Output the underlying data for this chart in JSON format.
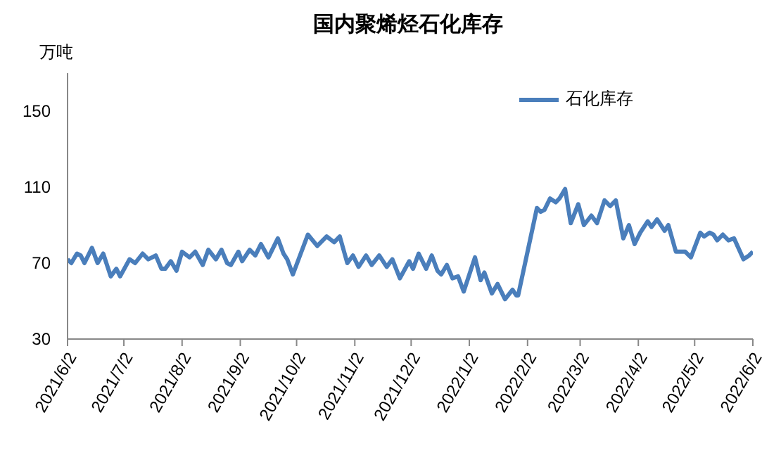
{
  "chart_data": {
    "type": "line",
    "title": "国内聚烯烃石化库存",
    "ylabel": "万吨",
    "legend": "top right",
    "marker": "none",
    "line_style": "solid",
    "grid": false,
    "ylim": [
      30,
      170
    ],
    "yticks": [
      30,
      70,
      110,
      150
    ],
    "xlim": [
      "2021-06-02",
      "2022-06-02"
    ],
    "xticks": [
      {
        "value": "2021-06-02",
        "label": "2021/6/2"
      },
      {
        "value": "2021-07-02",
        "label": "2021/7/2"
      },
      {
        "value": "2021-08-02",
        "label": "2021/8/2"
      },
      {
        "value": "2021-09-02",
        "label": "2021/9/2"
      },
      {
        "value": "2021-10-02",
        "label": "2021/10/2"
      },
      {
        "value": "2021-11-02",
        "label": "2021/11/2"
      },
      {
        "value": "2021-12-02",
        "label": "2021/12/2"
      },
      {
        "value": "2022-01-02",
        "label": "2022/1/2"
      },
      {
        "value": "2022-02-02",
        "label": "2022/2/2"
      },
      {
        "value": "2022-03-02",
        "label": "2022/3/2"
      },
      {
        "value": "2022-04-02",
        "label": "2022/4/2"
      },
      {
        "value": "2022-05-02",
        "label": "2022/5/2"
      },
      {
        "value": "2022-06-02",
        "label": "2022/6/2"
      }
    ],
    "x": [
      "2021-06-02",
      "2021-06-04",
      "2021-06-07",
      "2021-06-09",
      "2021-06-11",
      "2021-06-15",
      "2021-06-18",
      "2021-06-21",
      "2021-06-25",
      "2021-06-28",
      "2021-06-30",
      "2021-07-05",
      "2021-07-08",
      "2021-07-12",
      "2021-07-15",
      "2021-07-19",
      "2021-07-22",
      "2021-07-24",
      "2021-07-27",
      "2021-07-30",
      "2021-08-02",
      "2021-08-06",
      "2021-08-09",
      "2021-08-13",
      "2021-08-16",
      "2021-08-20",
      "2021-08-23",
      "2021-08-26",
      "2021-08-28",
      "2021-09-01",
      "2021-09-03",
      "2021-09-07",
      "2021-09-10",
      "2021-09-13",
      "2021-09-17",
      "2021-09-22",
      "2021-09-25",
      "2021-09-27",
      "2021-09-30",
      "2021-10-08",
      "2021-10-13",
      "2021-10-18",
      "2021-10-22",
      "2021-10-25",
      "2021-10-29",
      "2021-11-01",
      "2021-11-04",
      "2021-11-08",
      "2021-11-11",
      "2021-11-15",
      "2021-11-19",
      "2021-11-22",
      "2021-11-26",
      "2021-12-01",
      "2021-12-03",
      "2021-12-06",
      "2021-12-10",
      "2021-12-13",
      "2021-12-16",
      "2021-12-18",
      "2021-12-21",
      "2021-12-24",
      "2021-12-27",
      "2021-12-30",
      "2022-01-05",
      "2022-01-08",
      "2022-01-10",
      "2022-01-14",
      "2022-01-17",
      "2022-01-21",
      "2022-01-25",
      "2022-01-27",
      "2022-01-28",
      "2022-02-07",
      "2022-02-09",
      "2022-02-11",
      "2022-02-14",
      "2022-02-17",
      "2022-02-19",
      "2022-02-22",
      "2022-02-25",
      "2022-03-01",
      "2022-03-04",
      "2022-03-08",
      "2022-03-11",
      "2022-03-15",
      "2022-03-18",
      "2022-03-21",
      "2022-03-25",
      "2022-03-28",
      "2022-03-31",
      "2022-04-03",
      "2022-04-07",
      "2022-04-09",
      "2022-04-12",
      "2022-04-16",
      "2022-04-18",
      "2022-04-22",
      "2022-04-27",
      "2022-04-30",
      "2022-05-05",
      "2022-05-07",
      "2022-05-10",
      "2022-05-12",
      "2022-05-14",
      "2022-05-17",
      "2022-05-20",
      "2022-05-23",
      "2022-05-28",
      "2022-05-31",
      "2022-06-02"
    ],
    "series": [
      {
        "name": "石化库存",
        "color": "#4a7ebb",
        "values": [
          72,
          70,
          75,
          74,
          70,
          78,
          70,
          75,
          63,
          67,
          63,
          72,
          70,
          75,
          72,
          74,
          67,
          67,
          71,
          66,
          76,
          73,
          76,
          69,
          77,
          72,
          77,
          70,
          69,
          76,
          71,
          77,
          74,
          80,
          73,
          83,
          75,
          72,
          64,
          85,
          79,
          84,
          81,
          84,
          70,
          74,
          68,
          74,
          69,
          74,
          68,
          72,
          62,
          71,
          67,
          75,
          67,
          74,
          66,
          64,
          69,
          62,
          63,
          55,
          73,
          61,
          65,
          54,
          59,
          51,
          56,
          53,
          53,
          99,
          97,
          98,
          104,
          102,
          104,
          109,
          91,
          101,
          90,
          95,
          91,
          103,
          100,
          103,
          83,
          90,
          80,
          86,
          92,
          89,
          93,
          87,
          90,
          76,
          76,
          73,
          86,
          84,
          86,
          85,
          82,
          85,
          82,
          83,
          72,
          74,
          76
        ]
      }
    ]
  }
}
